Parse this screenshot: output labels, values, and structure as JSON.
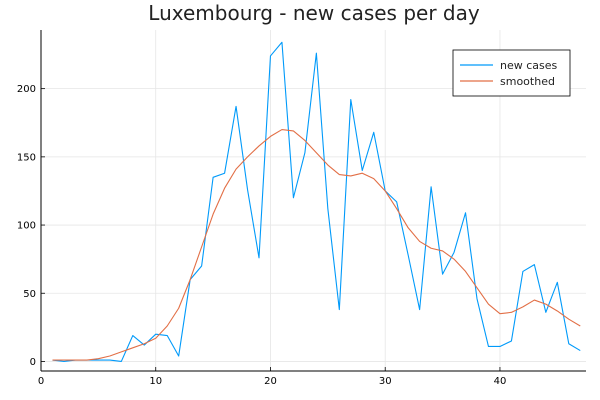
{
  "chart_data": {
    "type": "line",
    "title": "Luxembourg - new cases per day",
    "xlabel": "",
    "ylabel": "",
    "xlim": [
      0,
      47.5
    ],
    "ylim": [
      -7,
      243
    ],
    "x_ticks": [
      0,
      10,
      20,
      30,
      40
    ],
    "y_ticks": [
      0,
      50,
      100,
      150,
      200
    ],
    "grid": true,
    "legend_position": "top-right",
    "series": [
      {
        "name": "new cases",
        "color": "#009AFA",
        "x": [
          1,
          2,
          3,
          4,
          5,
          6,
          7,
          8,
          9,
          10,
          11,
          12,
          13,
          14,
          15,
          16,
          17,
          18,
          19,
          20,
          21,
          22,
          23,
          24,
          25,
          26,
          27,
          28,
          29,
          30,
          31,
          32,
          33,
          34,
          35,
          36,
          37,
          38,
          39,
          40,
          41,
          42,
          43,
          44,
          45,
          46,
          47
        ],
        "values": [
          1,
          0,
          1,
          1,
          1,
          1,
          0,
          19,
          12,
          20,
          19,
          4,
          60,
          70,
          135,
          138,
          187,
          126,
          76,
          224,
          234,
          120,
          153,
          226,
          112,
          38,
          192,
          140,
          168,
          125,
          117,
          78,
          38,
          128,
          64,
          80,
          109,
          46,
          11,
          11,
          15,
          66,
          71,
          36,
          58,
          13,
          8
        ]
      },
      {
        "name": "smoothed",
        "color": "#E26F46",
        "x": [
          1,
          2,
          3,
          4,
          5,
          6,
          7,
          8,
          9,
          10,
          11,
          12,
          13,
          14,
          15,
          16,
          17,
          18,
          19,
          20,
          21,
          22,
          23,
          24,
          25,
          26,
          27,
          28,
          29,
          30,
          31,
          32,
          33,
          34,
          35,
          36,
          37,
          38,
          39,
          40,
          41,
          42,
          43,
          44,
          45,
          46,
          47
        ],
        "values": [
          1,
          1,
          1,
          1,
          2,
          4,
          7,
          10,
          13,
          17,
          26,
          39,
          60,
          84,
          108,
          127,
          141,
          150,
          158,
          165,
          170,
          169,
          162,
          153,
          144,
          137,
          136,
          138,
          134,
          125,
          112,
          98,
          88,
          83,
          81,
          75,
          66,
          54,
          42,
          35,
          36,
          40,
          45,
          42,
          37,
          31,
          26
        ]
      }
    ]
  }
}
